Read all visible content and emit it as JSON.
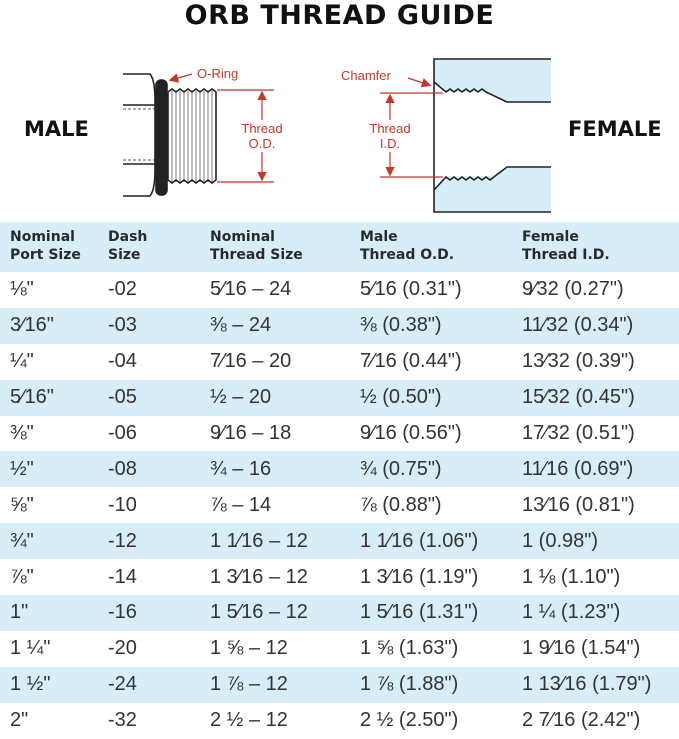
{
  "title": "ORB THREAD GUIDE",
  "labels": {
    "male": "MALE",
    "female": "FEMALE",
    "o_ring": "O-Ring",
    "thread_od_1": "Thread",
    "thread_od_2": "O.D.",
    "chamfer": "Chamfer",
    "thread_id_1": "Thread",
    "thread_id_2": "I.D."
  },
  "colors": {
    "accent": "#c0392b",
    "row_shade": "#d7eef9"
  },
  "table": {
    "headers": [
      [
        "Nominal",
        "Port Size"
      ],
      [
        "Dash",
        "Size"
      ],
      [
        "Nominal",
        "Thread Size"
      ],
      [
        "Male",
        "Thread O.D."
      ],
      [
        "Female",
        "Thread I.D."
      ]
    ],
    "rows": [
      [
        "⅛\"",
        "-02",
        "5⁄16 – 24",
        "5⁄16 (0.31\")",
        "9⁄32 (0.27\")"
      ],
      [
        "3⁄16\"",
        "-03",
        "⅜ – 24",
        "⅜ (0.38\")",
        "11⁄32 (0.34\")"
      ],
      [
        "¼\"",
        "-04",
        "7⁄16 – 20",
        "7⁄16 (0.44\")",
        "13⁄32 (0.39\")"
      ],
      [
        "5⁄16\"",
        "-05",
        "½ – 20",
        "½ (0.50\")",
        "15⁄32 (0.45\")"
      ],
      [
        "⅜\"",
        "-06",
        "9⁄16 – 18",
        "9⁄16 (0.56\")",
        "17⁄32 (0.51\")"
      ],
      [
        "½\"",
        "-08",
        "¾ – 16",
        "¾ (0.75\")",
        "11⁄16 (0.69\")"
      ],
      [
        "⅝\"",
        "-10",
        "⅞ – 14",
        "⅞ (0.88\")",
        "13⁄16 (0.81\")"
      ],
      [
        "¾\"",
        "-12",
        "1 1⁄16 – 12",
        "1 1⁄16 (1.06\")",
        "1 (0.98\")"
      ],
      [
        "⅞\"",
        "-14",
        "1 3⁄16 – 12",
        "1 3⁄16 (1.19\")",
        "1 ⅛ (1.10\")"
      ],
      [
        "1\"",
        "-16",
        "1 5⁄16 – 12",
        "1 5⁄16 (1.31\")",
        "1 ¼ (1.23\")"
      ],
      [
        "1 ¼\"",
        "-20",
        "1 ⅝ – 12",
        "1 ⅝ (1.63\")",
        "1 9⁄16 (1.54\")"
      ],
      [
        "1 ½\"",
        "-24",
        "1 ⅞ – 12",
        "1 ⅞ (1.88\")",
        "1 13⁄16 (1.79\")"
      ],
      [
        "2\"",
        "-32",
        "2 ½ – 12",
        "2 ½ (2.50\")",
        "2 7⁄16 (2.42\")"
      ]
    ]
  }
}
